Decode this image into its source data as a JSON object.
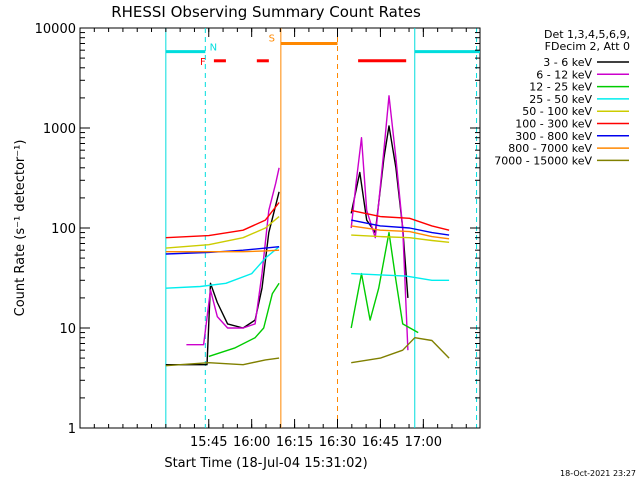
{
  "chart_data": {
    "type": "line",
    "title": "RHESSI Observing Summary Count Rates",
    "xlabel": "Start Time (18-Jul-04 15:31:02)",
    "ylabel": "Count Rate (s⁻¹ detector⁻¹)",
    "yscale": "log",
    "ylim": [
      1,
      10000
    ],
    "xlim_minutes": [
      15.0,
      17.33
    ],
    "x_ticks": [
      {
        "v": 15.75,
        "label": "15:45"
      },
      {
        "v": 16.0,
        "label": "16:00"
      },
      {
        "v": 16.25,
        "label": "16:15"
      },
      {
        "v": 16.5,
        "label": "16:30"
      },
      {
        "v": 16.75,
        "label": "16:45"
      },
      {
        "v": 17.0,
        "label": "17:00"
      }
    ],
    "y_ticks": [
      {
        "v": 1,
        "label": "1"
      },
      {
        "v": 10,
        "label": "10"
      },
      {
        "v": 100,
        "label": "100"
      },
      {
        "v": 1000,
        "label": "1000"
      },
      {
        "v": 10000,
        "label": "10000"
      }
    ],
    "legend_header": [
      "Det 1,3,4,5,6,9,",
      "FDecim 2, Att 0"
    ],
    "timestamp": "18-Oct-2021 23:27",
    "annotations": {
      "night": "N",
      "flare": "F",
      "saa": "S"
    },
    "series": [
      {
        "name": "3 - 6 keV",
        "color": "#000000",
        "segments": [
          [
            [
              15.5,
              4.3
            ],
            [
              15.74,
              4.3
            ],
            [
              15.76,
              28
            ],
            [
              15.8,
              18
            ],
            [
              15.86,
              11
            ],
            [
              15.95,
              10
            ],
            [
              16.02,
              12
            ],
            [
              16.06,
              25
            ],
            [
              16.1,
              90
            ],
            [
              16.16,
              230
            ]
          ],
          [
            [
              16.58,
              140
            ],
            [
              16.63,
              360
            ],
            [
              16.67,
              120
            ],
            [
              16.72,
              90
            ],
            [
              16.77,
              500
            ],
            [
              16.8,
              1050
            ],
            [
              16.84,
              400
            ],
            [
              16.88,
              100
            ],
            [
              16.91,
              20
            ]
          ]
        ]
      },
      {
        "name": "6 - 12 keV",
        "color": "#cc00cc",
        "segments": [
          [
            [
              15.62,
              6.8
            ],
            [
              15.72,
              6.8
            ],
            [
              15.76,
              24
            ],
            [
              15.8,
              13
            ],
            [
              15.86,
              10
            ],
            [
              15.95,
              10
            ],
            [
              16.02,
              11
            ],
            [
              16.06,
              35
            ],
            [
              16.1,
              150
            ],
            [
              16.14,
              280
            ],
            [
              16.16,
              400
            ]
          ],
          [
            [
              16.58,
              100
            ],
            [
              16.61,
              300
            ],
            [
              16.64,
              800
            ],
            [
              16.67,
              150
            ],
            [
              16.72,
              80
            ],
            [
              16.77,
              600
            ],
            [
              16.8,
              2100
            ],
            [
              16.84,
              500
            ],
            [
              16.88,
              100
            ],
            [
              16.91,
              6
            ]
          ]
        ]
      },
      {
        "name": "12 - 25 keV",
        "color": "#00cc00",
        "segments": [
          [
            [
              15.75,
              5.2
            ],
            [
              15.9,
              6.3
            ],
            [
              16.02,
              8
            ],
            [
              16.07,
              10
            ],
            [
              16.12,
              22
            ],
            [
              16.16,
              28
            ]
          ],
          [
            [
              16.58,
              10
            ],
            [
              16.64,
              35
            ],
            [
              16.69,
              12
            ],
            [
              16.74,
              25
            ],
            [
              16.8,
              90
            ],
            [
              16.84,
              30
            ],
            [
              16.88,
              11
            ],
            [
              16.97,
              9
            ]
          ]
        ]
      },
      {
        "name": "25 - 50 keV",
        "color": "#00eeee",
        "segments": [
          [
            [
              15.5,
              25
            ],
            [
              15.7,
              26
            ],
            [
              15.85,
              28
            ],
            [
              16.0,
              35
            ],
            [
              16.08,
              50
            ],
            [
              16.16,
              65
            ]
          ],
          [
            [
              16.58,
              35
            ],
            [
              16.75,
              34
            ],
            [
              16.9,
              33
            ],
            [
              17.05,
              30
            ],
            [
              17.15,
              30
            ]
          ]
        ]
      },
      {
        "name": "50 - 100 keV",
        "color": "#cccc00",
        "segments": [
          [
            [
              15.5,
              63
            ],
            [
              15.75,
              68
            ],
            [
              15.95,
              80
            ],
            [
              16.08,
              100
            ],
            [
              16.16,
              130
            ]
          ],
          [
            [
              16.58,
              85
            ],
            [
              16.75,
              82
            ],
            [
              16.92,
              80
            ],
            [
              17.05,
              75
            ],
            [
              17.15,
              72
            ]
          ]
        ]
      },
      {
        "name": "100 - 300 keV",
        "color": "#ff0000",
        "segments": [
          [
            [
              15.5,
              80
            ],
            [
              15.75,
              84
            ],
            [
              15.95,
              95
            ],
            [
              16.08,
              120
            ],
            [
              16.16,
              180
            ]
          ],
          [
            [
              16.58,
              150
            ],
            [
              16.75,
              130
            ],
            [
              16.92,
              125
            ],
            [
              17.05,
              105
            ],
            [
              17.15,
              95
            ]
          ]
        ]
      },
      {
        "name": "300 - 800 keV",
        "color": "#0000ee",
        "segments": [
          [
            [
              15.5,
              55
            ],
            [
              15.75,
              57
            ],
            [
              15.95,
              60
            ],
            [
              16.08,
              63
            ],
            [
              16.16,
              65
            ]
          ],
          [
            [
              16.58,
              120
            ],
            [
              16.75,
              105
            ],
            [
              16.92,
              100
            ],
            [
              17.05,
              90
            ],
            [
              17.15,
              85
            ]
          ]
        ]
      },
      {
        "name": "800 - 7000 keV",
        "color": "#ff8800",
        "segments": [
          [
            [
              15.5,
              58
            ],
            [
              15.75,
              58
            ],
            [
              15.95,
              58
            ],
            [
              16.08,
              59
            ],
            [
              16.16,
              60
            ]
          ],
          [
            [
              16.58,
              105
            ],
            [
              16.75,
              95
            ],
            [
              16.92,
              92
            ],
            [
              17.05,
              82
            ],
            [
              17.15,
              78
            ]
          ]
        ]
      },
      {
        "name": "7000 - 15000 keV",
        "color": "#808000",
        "segments": [
          [
            [
              15.5,
              4.2
            ],
            [
              15.75,
              4.5
            ],
            [
              15.95,
              4.3
            ],
            [
              16.08,
              4.8
            ],
            [
              16.16,
              5
            ]
          ],
          [
            [
              16.58,
              4.5
            ],
            [
              16.75,
              5
            ],
            [
              16.88,
              6
            ],
            [
              16.95,
              8
            ],
            [
              17.05,
              7.5
            ],
            [
              17.15,
              5
            ]
          ]
        ]
      }
    ],
    "status_bars": [
      {
        "type": "night",
        "color": "#00dddd",
        "x0": 15.5,
        "x1": 15.73,
        "y": 5800
      },
      {
        "type": "night",
        "color": "#00dddd",
        "x0": 16.95,
        "x1": 17.33,
        "y": 5800
      },
      {
        "type": "flare",
        "color": "#ff0000",
        "x0": 15.78,
        "x1": 15.85,
        "y": 4700
      },
      {
        "type": "flare",
        "color": "#ff0000",
        "x0": 16.03,
        "x1": 16.1,
        "y": 4700
      },
      {
        "type": "flare",
        "color": "#ff0000",
        "x0": 16.62,
        "x1": 16.9,
        "y": 4700
      },
      {
        "type": "saa",
        "color": "#ff8800",
        "x0": 16.17,
        "x1": 16.5,
        "y": 7000
      }
    ],
    "vertical_lines": [
      {
        "color": "#00dddd",
        "x": 15.5,
        "style": "solid"
      },
      {
        "color": "#00dddd",
        "x": 15.73,
        "style": "dashed"
      },
      {
        "color": "#00dddd",
        "x": 16.95,
        "style": "solid"
      },
      {
        "color": "#00dddd",
        "x": 17.31,
        "style": "dashed"
      },
      {
        "color": "#ff8800",
        "x": 16.17,
        "style": "solid"
      },
      {
        "color": "#ff8800",
        "x": 16.5,
        "style": "dashed"
      }
    ]
  }
}
